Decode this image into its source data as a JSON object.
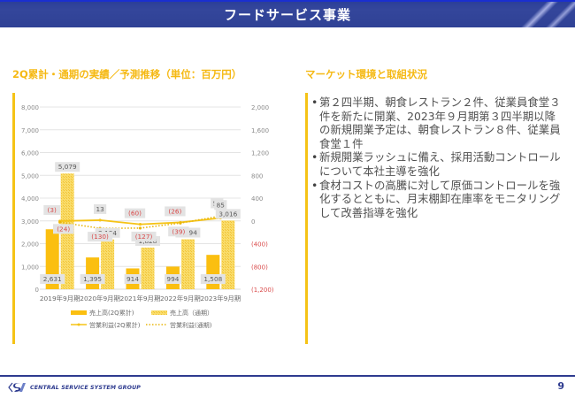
{
  "header": {
    "title": "フードサービス事業"
  },
  "left_section": {
    "title": "2Q累計・通期の実績／予測推移（単位：百万円）"
  },
  "right_section": {
    "title": "マーケット環境と取組状況",
    "bullets": [
      "第２四半期、朝食レストラン２件、従業員食堂３件を新たに開業、2023年９月期第３四半期以降の新規開業予定は、朝食レストラン８件、従業員食堂１件",
      "新規開業ラッシュに備え、採用活動コントロールについて本社主導を強化",
      "食材コストの高騰に対して原価コントロールを強化するとともに、月末棚卸在庫率をモニタリングして改善指導を強化"
    ]
  },
  "footer": {
    "company": "CENTRAL SERVICE SYSTEM GROUP",
    "page_number": "9"
  },
  "colors": {
    "accent": "#f5b914",
    "bar_solid": "#fbbf10",
    "bar_hatch": "#f7d258",
    "loss_text": "#d94a4a",
    "header_bg": "#34469b"
  },
  "chart_data": {
    "type": "bar",
    "title": "2Q累計・通期の実績／予測推移（単位：百万円）",
    "categories": [
      "2019年9月期",
      "2020年9月期",
      "2021年9月期",
      "2022年9月期",
      "2023年9月期"
    ],
    "series": [
      {
        "name": "売上高(2Q累計)",
        "kind": "bar",
        "axis": "left",
        "values": [
          2631,
          1395,
          914,
          994,
          1508
        ],
        "labels": [
          "2,631",
          "1,395",
          "914",
          "994",
          "1,508"
        ]
      },
      {
        "name": "売上高（通期）",
        "kind": "bar-hatched",
        "axis": "left",
        "values": [
          5079,
          2184,
          1828,
          2194,
          3016
        ],
        "labels": [
          "5,079",
          "2,184",
          "1,828",
          "2,194",
          "3,016"
        ]
      },
      {
        "name": "営業利益(2Q累計)",
        "kind": "line",
        "axis": "right",
        "values": [
          -3,
          13,
          -60,
          -26,
          51
        ],
        "labels": [
          "(3)",
          "13",
          "(60)",
          "(26)",
          "51"
        ]
      },
      {
        "name": "営業利益(通期)",
        "kind": "line-dotted",
        "axis": "right",
        "values": [
          -24,
          -130,
          -127,
          -39,
          85
        ],
        "labels": [
          "(24)",
          "(130)",
          "(127)",
          "(39)",
          "85"
        ]
      }
    ],
    "y_left": {
      "min": 0,
      "max": 8000,
      "ticks": [
        "8,000",
        "7,000",
        "6,000",
        "5,000",
        "4,000",
        "3,000",
        "2,000",
        "1,000",
        "0"
      ],
      "tick_values": [
        8000,
        7000,
        6000,
        5000,
        4000,
        3000,
        2000,
        1000,
        0
      ]
    },
    "y_right": {
      "min": -1200,
      "max": 2000,
      "ticks": [
        "2,000",
        "1,600",
        "1,200",
        "800",
        "400",
        "0",
        "(400)",
        "(800)",
        "(1,200)"
      ],
      "tick_values": [
        2000,
        1600,
        1200,
        800,
        400,
        0,
        -400,
        -800,
        -1200
      ]
    },
    "grid": true,
    "legend": {
      "position": "bottom",
      "entries": [
        "売上高(2Q累計)",
        "売上高（通期）",
        "営業利益(2Q累計)",
        "営業利益(通期)"
      ]
    }
  }
}
